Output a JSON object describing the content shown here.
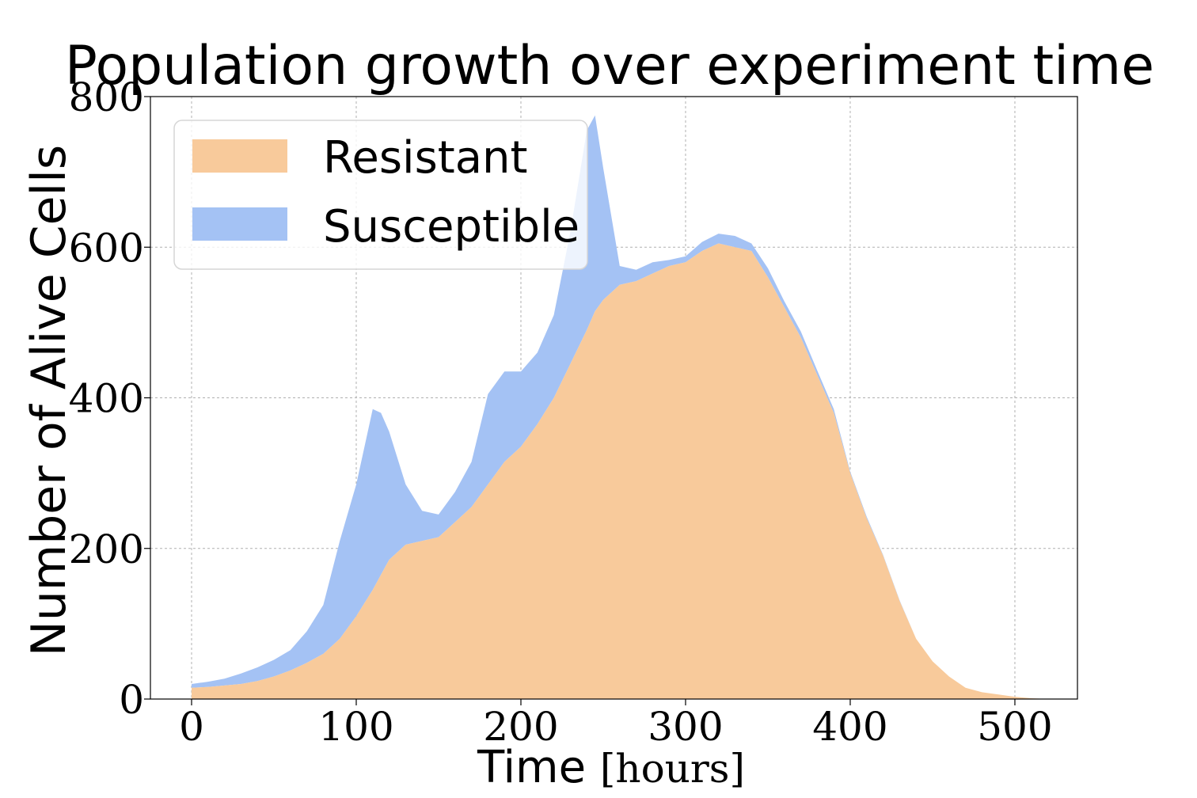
{
  "chart_data": {
    "type": "area",
    "stacked": true,
    "title": "Population growth over experiment time",
    "xlabel": "Time",
    "xlabel_unit": "[hours]",
    "ylabel": "Number of Alive Cells",
    "xlim": [
      -25,
      538
    ],
    "ylim": [
      0,
      800
    ],
    "xticks": [
      0,
      100,
      200,
      300,
      400,
      500
    ],
    "yticks": [
      0,
      200,
      400,
      600,
      800
    ],
    "xtick_labels": [
      "0",
      "100",
      "200",
      "300",
      "400",
      "500"
    ],
    "ytick_labels": [
      "0",
      "200",
      "400",
      "600",
      "800"
    ],
    "grid": true,
    "legend_position": "upper-left",
    "x": [
      0,
      10,
      20,
      30,
      40,
      50,
      60,
      70,
      80,
      90,
      100,
      110,
      115,
      120,
      130,
      140,
      150,
      160,
      170,
      180,
      190,
      200,
      210,
      220,
      230,
      240,
      245,
      250,
      260,
      270,
      280,
      290,
      300,
      310,
      320,
      330,
      340,
      350,
      360,
      370,
      380,
      390,
      400,
      410,
      420,
      430,
      440,
      450,
      460,
      470,
      480,
      490,
      500,
      510,
      520
    ],
    "series": [
      {
        "name": "Resistant",
        "color": "#f8ca9b",
        "values": [
          15,
          16,
          18,
          20,
          24,
          30,
          38,
          48,
          60,
          80,
          110,
          145,
          165,
          185,
          205,
          210,
          215,
          235,
          255,
          285,
          315,
          335,
          365,
          400,
          445,
          490,
          515,
          530,
          550,
          555,
          565,
          575,
          580,
          595,
          605,
          600,
          595,
          560,
          520,
          480,
          430,
          380,
          300,
          240,
          190,
          130,
          80,
          50,
          30,
          15,
          9,
          6,
          3,
          1,
          0
        ]
      },
      {
        "name": "Susceptible",
        "color": "#a4c2f4",
        "values": [
          5,
          7,
          9,
          14,
          18,
          22,
          27,
          42,
          65,
          130,
          175,
          240,
          215,
          170,
          80,
          40,
          30,
          40,
          60,
          120,
          120,
          100,
          95,
          110,
          175,
          265,
          260,
          175,
          25,
          15,
          15,
          8,
          8,
          12,
          13,
          15,
          10,
          12,
          8,
          8,
          6,
          5,
          2,
          2,
          1,
          1,
          0,
          0,
          0,
          0,
          0,
          0,
          0,
          0,
          0
        ]
      }
    ]
  }
}
